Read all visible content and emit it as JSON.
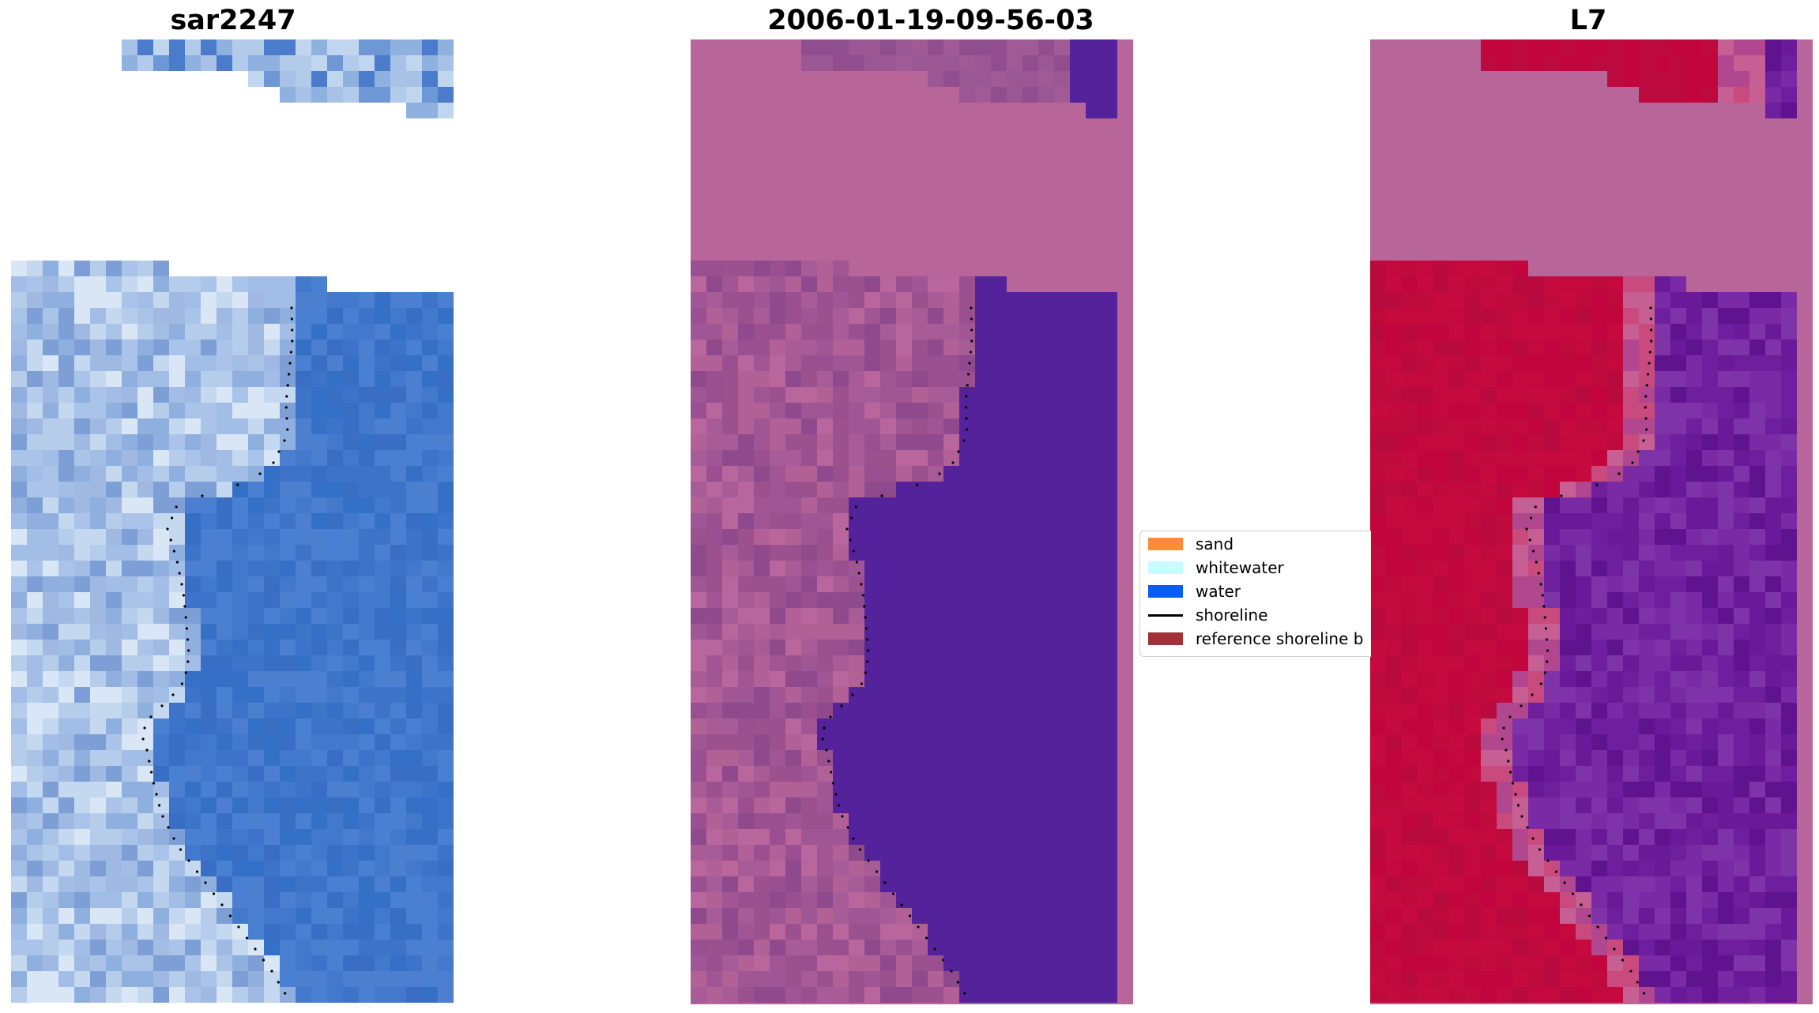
{
  "panels": [
    {
      "title": "sar2247",
      "palette": {
        "land": [
          "#9fb9e2",
          "#a9c4e8",
          "#b5cdea",
          "#8fb0df",
          "#c4d8ef",
          "#a2bde6",
          "#d8e6f6",
          "#7d9fd6"
        ],
        "water": [
          "#3d73c9",
          "#4279cd",
          "#3a6ec4",
          "#4a80d1",
          "#3570c7",
          "#4c7fcf"
        ],
        "top": [
          "#b3cbeb",
          "#a7c2e6",
          "#8fb1df",
          "#c0d6ef",
          "#6e97d6",
          "#4b7ccc"
        ]
      }
    },
    {
      "title": "2006-01-19-09-56-03",
      "palette": {
        "background": "#b8669a",
        "land": [
          "#a05595",
          "#9a4f90",
          "#a75c98",
          "#b16196",
          "#8e4a8c",
          "#b9669c",
          "#9c518f"
        ],
        "water": [
          "#54229a"
        ],
        "top": [
          "#914e8f",
          "#9a5794",
          "#a05a96"
        ]
      }
    },
    {
      "title": "L7",
      "palette": {
        "background": "#b8669a",
        "land": [
          "#c2053c",
          "#bf0a3e",
          "#c4093f",
          "#b90a3d",
          "#c50a40"
        ],
        "transition": [
          "#c94a7c",
          "#c65f93",
          "#b1478f"
        ],
        "water": [
          "#6e1f9e",
          "#7a2aa4",
          "#6a1a98",
          "#7e33a8",
          "#5f138f"
        ],
        "top": [
          "#c2053c",
          "#bd0a3e"
        ]
      }
    }
  ],
  "legend": {
    "items": [
      {
        "label": "sand",
        "color": "#ff8c3a"
      },
      {
        "label": "whitewater",
        "color": "#c8fcff"
      },
      {
        "label": "water",
        "color": "#0a5cf5"
      },
      {
        "label": "shoreline",
        "color": "#000000"
      },
      {
        "label": "reference shoreline b",
        "color": "#a03238"
      }
    ]
  },
  "shoreline_color": "#000000"
}
